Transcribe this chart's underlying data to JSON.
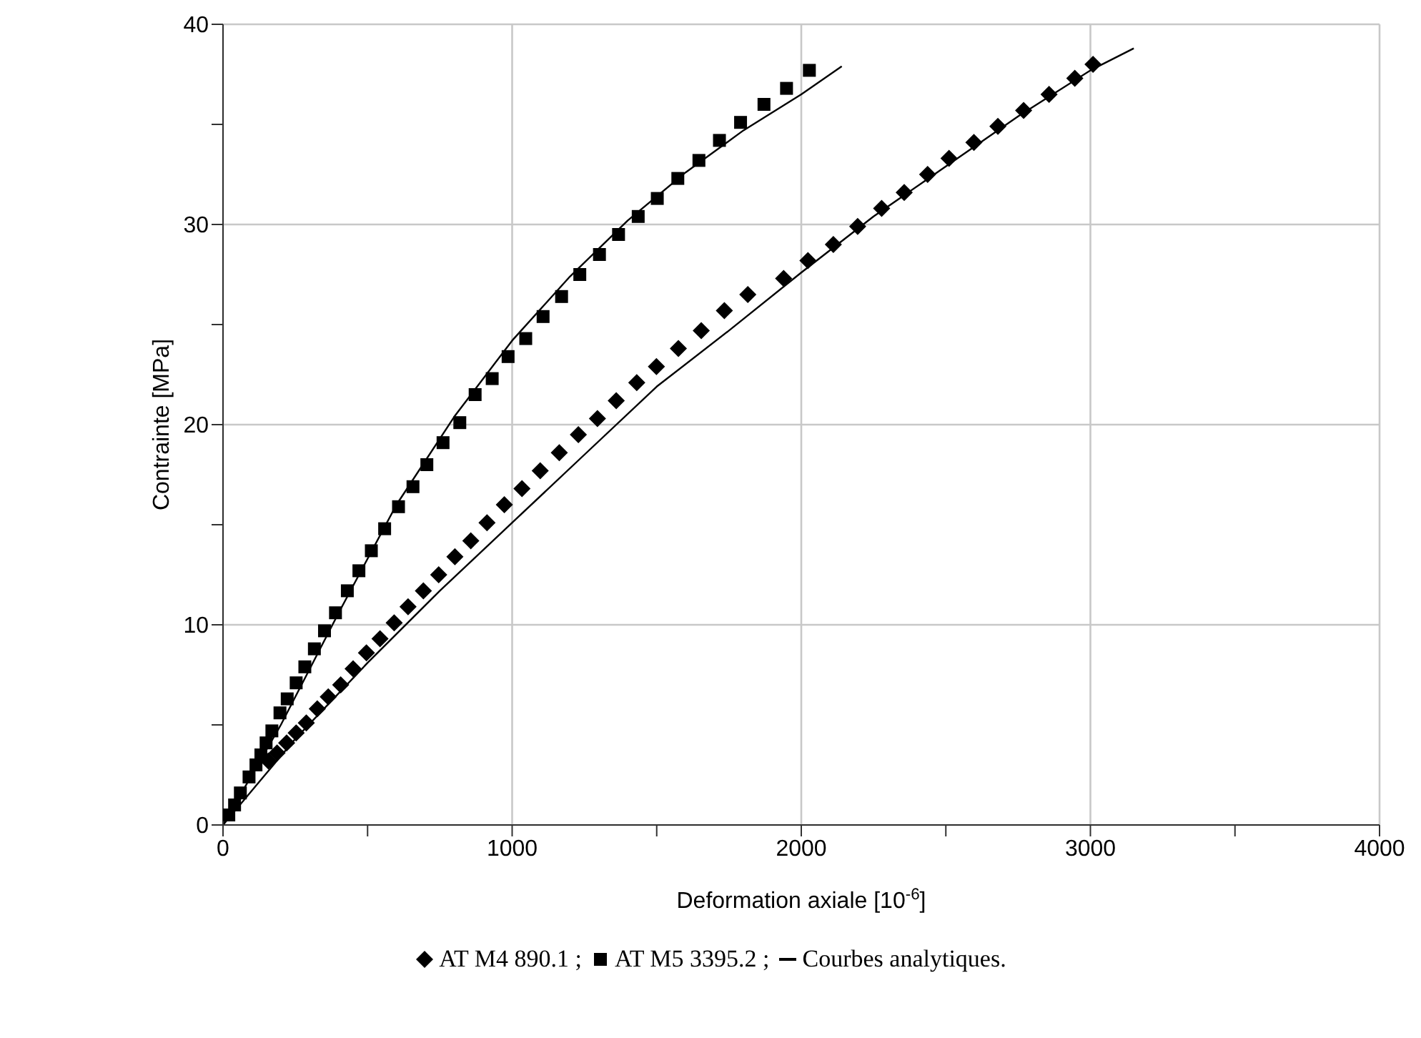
{
  "chart_data": {
    "type": "scatter",
    "xlabel": "Deformation axiale [10$^{-6}$]",
    "ylabel": "Contrainte [MPa]",
    "xlim": [
      0,
      4000
    ],
    "ylim": [
      0,
      40
    ],
    "xticks": [
      0,
      {
        "value": 500,
        "label": null
      },
      1000,
      {
        "value": 1500,
        "label": null
      },
      2000,
      {
        "value": 2500,
        "label": null
      },
      3000,
      {
        "value": 3500,
        "label": null
      },
      4000
    ],
    "yticks": [
      0,
      {
        "value": 5,
        "label": null
      },
      10,
      {
        "value": 15,
        "label": null
      },
      20,
      {
        "value": 25,
        "label": null
      },
      30,
      {
        "value": 35,
        "label": null
      },
      40
    ],
    "grid": true,
    "legend": "bottom",
    "series": [
      {
        "name": "AT M4 890.1 ;",
        "marker": "diamond",
        "color": "#000000",
        "x": [
          157,
          187,
          220,
          253,
          288,
          326,
          364,
          407,
          450,
          496,
          543,
          592,
          640,
          693,
          746,
          802,
          857,
          913,
          973,
          1034,
          1097,
          1163,
          1229,
          1295,
          1360,
          1431,
          1499,
          1575,
          1654,
          1734,
          1815,
          1939,
          2023,
          2111,
          2195,
          2278,
          2356,
          2437,
          2511,
          2597,
          2680,
          2769,
          2857,
          2946,
          3009
        ],
        "values": [
          3.2,
          3.6,
          4.1,
          4.6,
          5.1,
          5.8,
          6.4,
          7.0,
          7.8,
          8.6,
          9.3,
          10.1,
          10.9,
          11.7,
          12.5,
          13.4,
          14.2,
          15.1,
          16.0,
          16.8,
          17.7,
          18.6,
          19.5,
          20.3,
          21.2,
          22.1,
          22.9,
          23.8,
          24.7,
          25.7,
          26.5,
          27.3,
          28.2,
          29.0,
          29.9,
          30.8,
          31.6,
          32.5,
          33.3,
          34.1,
          34.9,
          35.7,
          36.5,
          37.3,
          38.0
        ]
      },
      {
        "name": "AT M5 3395.2 ;",
        "marker": "square",
        "color": "#000000",
        "x": [
          20,
          40,
          60,
          90,
          114,
          131,
          149,
          169,
          197,
          222,
          253,
          283,
          316,
          351,
          389,
          430,
          470,
          513,
          559,
          607,
          657,
          705,
          761,
          819,
          872,
          931,
          986,
          1047,
          1107,
          1171,
          1234,
          1302,
          1368,
          1436,
          1502,
          1573,
          1646,
          1717,
          1790,
          1871,
          1949,
          2028
        ],
        "values": [
          0.5,
          1.0,
          1.6,
          2.4,
          3.0,
          3.5,
          4.1,
          4.7,
          5.6,
          6.3,
          7.1,
          7.9,
          8.8,
          9.7,
          10.6,
          11.7,
          12.7,
          13.7,
          14.8,
          15.9,
          16.9,
          18.0,
          19.1,
          20.1,
          21.5,
          22.3,
          23.4,
          24.3,
          25.4,
          26.4,
          27.5,
          28.5,
          29.5,
          30.4,
          31.3,
          32.3,
          33.2,
          34.2,
          35.1,
          36.0,
          36.8,
          37.7
        ]
      },
      {
        "name": "Courbes analytiques.",
        "type": "line",
        "line_style": "solid",
        "color": "#000000",
        "x": [
          0,
          200,
          400,
          600,
          800,
          1000,
          1200,
          1400,
          1600,
          1800,
          2000,
          2140
        ],
        "values": [
          0,
          5.0,
          10.6,
          16.0,
          20.4,
          24.2,
          27.4,
          30.2,
          32.6,
          34.7,
          36.5,
          37.9
        ]
      },
      {
        "type": "line",
        "line_style": "solid",
        "color": "#000000",
        "x": [
          0,
          250,
          500,
          750,
          1000,
          1250,
          1500,
          1750,
          2000,
          2250,
          2500,
          2750,
          3000,
          3150
        ],
        "values": [
          0,
          4.3,
          8.1,
          11.7,
          15.1,
          18.5,
          21.9,
          24.7,
          27.6,
          30.4,
          32.9,
          35.4,
          37.7,
          38.8
        ]
      }
    ]
  }
}
